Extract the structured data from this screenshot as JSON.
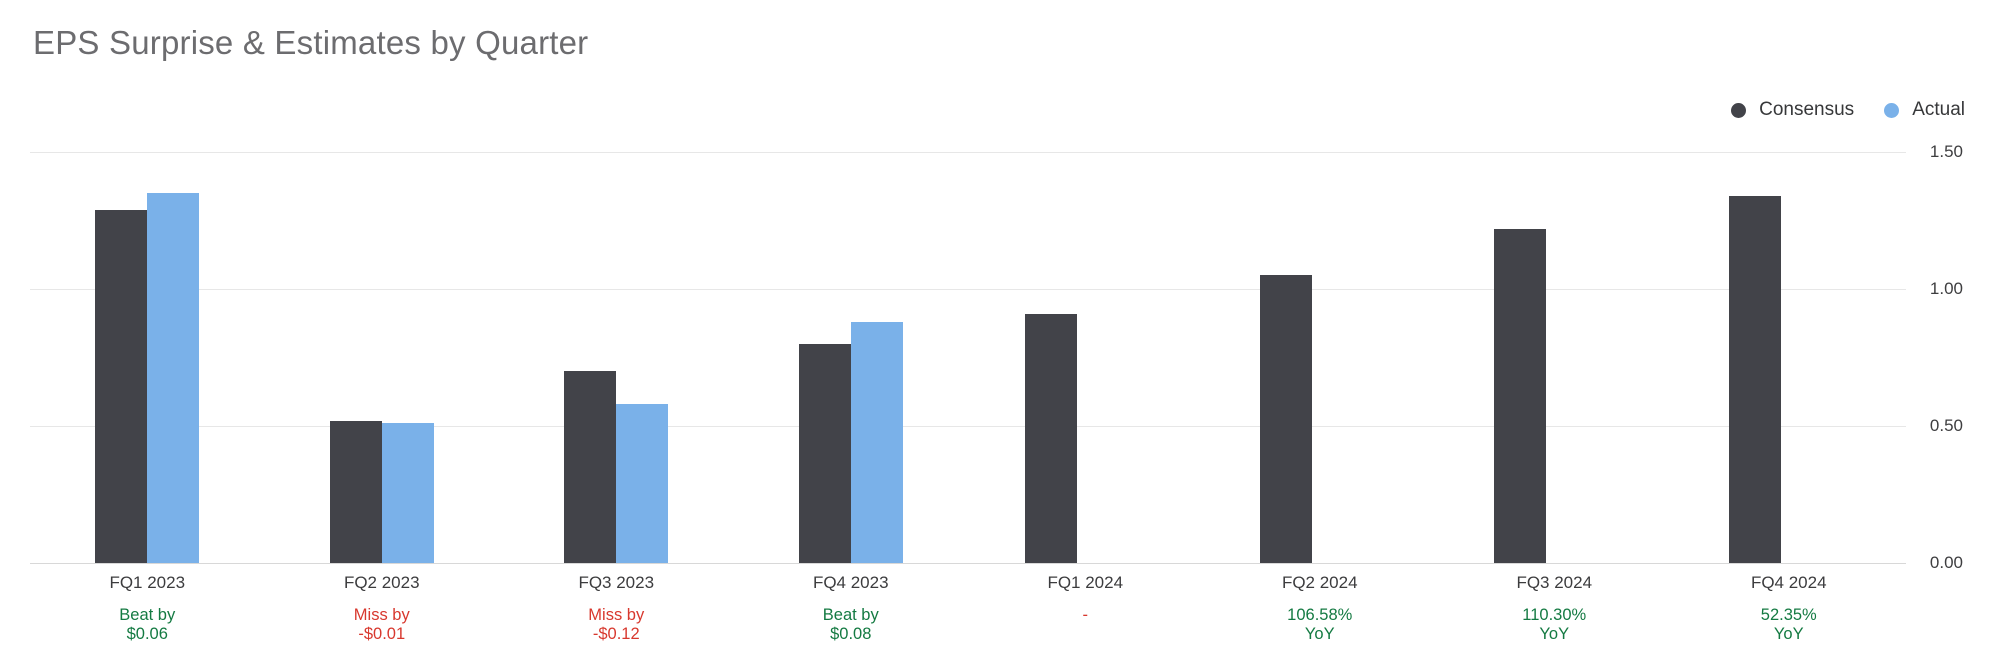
{
  "chart_data": {
    "type": "bar",
    "title": "EPS Surprise & Estimates by Quarter",
    "categories": [
      "FQ1 2023",
      "FQ2 2023",
      "FQ3 2023",
      "FQ4 2023",
      "FQ1 2024",
      "FQ2 2024",
      "FQ3 2024",
      "FQ4 2024"
    ],
    "series": [
      {
        "name": "Consensus",
        "color": "#424349",
        "values": [
          1.29,
          0.52,
          0.7,
          0.8,
          0.91,
          1.05,
          1.22,
          1.34
        ]
      },
      {
        "name": "Actual",
        "color": "#7ab1e9",
        "values": [
          1.35,
          0.51,
          0.58,
          0.88,
          null,
          null,
          null,
          null
        ]
      }
    ],
    "surprise_labels": [
      {
        "lines": [
          "Beat by",
          "$0.06"
        ],
        "type": "beat"
      },
      {
        "lines": [
          "Miss by",
          "-$0.01"
        ],
        "type": "miss"
      },
      {
        "lines": [
          "Miss by",
          "-$0.12"
        ],
        "type": "miss"
      },
      {
        "lines": [
          "Beat by",
          "$0.08"
        ],
        "type": "beat"
      },
      {
        "lines": [
          "-"
        ],
        "type": "miss"
      },
      {
        "lines": [
          "106.58%",
          "YoY"
        ],
        "type": "beat"
      },
      {
        "lines": [
          "110.30%",
          "YoY"
        ],
        "type": "beat"
      },
      {
        "lines": [
          "52.35%",
          "YoY"
        ],
        "type": "beat"
      }
    ],
    "y_axis": {
      "position": "right",
      "min": 0,
      "max": 1.5,
      "tick_values": [
        0,
        0.5,
        1.0,
        1.5
      ],
      "tick_labels": [
        "0.00",
        "0.50",
        "1.00",
        "1.50"
      ],
      "grid": true
    },
    "legend_position": "top-right",
    "status_colors": {
      "beat": "#147a42",
      "miss": "#d8382e"
    }
  }
}
